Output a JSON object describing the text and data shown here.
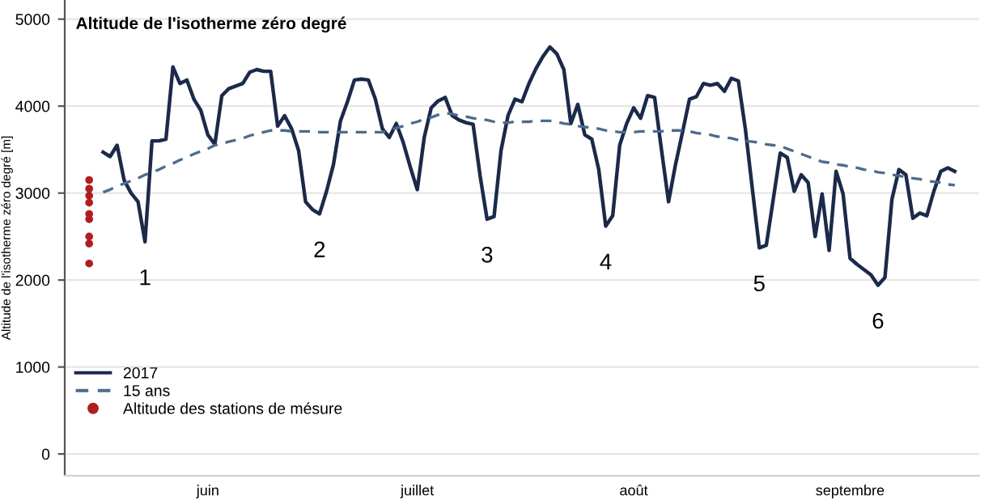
{
  "chart_data": {
    "type": "line",
    "title": "Altitude de l'isotherme zéro degré",
    "ylabel": "Altitude de l'isotherme zéro degré [m]",
    "ylim": [
      -250,
      5220
    ],
    "yticks": [
      0,
      1000,
      2000,
      3000,
      4000,
      5000
    ],
    "categories": [
      null,
      null,
      null,
      null,
      null,
      null,
      null,
      null,
      null,
      null,
      null,
      null,
      null,
      null,
      null,
      null,
      null,
      null,
      null,
      null,
      "juin",
      null,
      null,
      null,
      null,
      null,
      null,
      null,
      null,
      null,
      null,
      null,
      null,
      null,
      null,
      null,
      null,
      null,
      null,
      null,
      null,
      null,
      null,
      null,
      null,
      null,
      null,
      null,
      null,
      null,
      "juillet",
      null,
      null,
      null,
      null,
      null,
      null,
      null,
      null,
      null,
      null,
      null,
      null,
      null,
      null,
      null,
      null,
      null,
      null,
      null,
      null,
      null,
      null,
      null,
      null,
      null,
      null,
      null,
      null,
      null,
      null,
      "août",
      null,
      null,
      null,
      null,
      null,
      null,
      null,
      null,
      null,
      null,
      null,
      null,
      null,
      null,
      null,
      null,
      null,
      null,
      null,
      null,
      null,
      null,
      null,
      null,
      null,
      null,
      null,
      null,
      null,
      null,
      "septembre",
      null,
      null,
      null,
      null,
      null,
      null,
      null,
      null,
      null,
      null,
      null,
      null,
      null,
      null,
      null,
      null,
      null,
      null
    ],
    "grid": "y",
    "legend": "left",
    "annotations": [
      {
        "text": "1",
        "y": 2440
      },
      {
        "text": "2",
        "y": 2760
      },
      {
        "text": "3",
        "y": 2700
      },
      {
        "text": "4",
        "y": 2620
      },
      {
        "text": "5",
        "y": 2370
      },
      {
        "text": "6",
        "y": 1940
      }
    ],
    "series": [
      {
        "name": "2017",
        "line_style": "solid",
        "color": "#1b2a4a",
        "values": [
          null,
          null,
          null,
          null,
          null,
          3470,
          3420,
          3550,
          3150,
          3000,
          2900,
          2440,
          3600,
          3600,
          3620,
          4450,
          4260,
          4300,
          4080,
          3950,
          3670,
          3560,
          4120,
          4200,
          4230,
          4260,
          4390,
          4420,
          4400,
          4400,
          3770,
          3890,
          3740,
          3490,
          2900,
          2810,
          2760,
          3020,
          3330,
          3830,
          4050,
          4300,
          4310,
          4300,
          4080,
          3740,
          3640,
          3800,
          3580,
          3300,
          3040,
          3640,
          3980,
          4060,
          4100,
          3890,
          3840,
          3810,
          3790,
          3200,
          2700,
          2730,
          3490,
          3890,
          4080,
          4050,
          4260,
          4430,
          4570,
          4680,
          4600,
          4420,
          3800,
          4020,
          3670,
          3620,
          3270,
          2620,
          2740,
          3550,
          3800,
          3980,
          3860,
          4120,
          4100,
          3490,
          2900,
          3330,
          3700,
          4080,
          4110,
          4260,
          4240,
          4260,
          4170,
          4320,
          4290,
          3740,
          3050,
          2370,
          2400,
          2930,
          3460,
          3410,
          3020,
          3210,
          3120,
          2500,
          2990,
          2340,
          3250,
          2990,
          2250,
          2180,
          2120,
          2060,
          1940,
          2030,
          2930,
          3270,
          3210,
          2710,
          2770,
          2740,
          3020,
          3250,
          3290,
          3250,
          null,
          null,
          null
        ]
      },
      {
        "name": "15 ans",
        "line_style": "dashed",
        "color": "#4d6b8c",
        "values": [
          null,
          null,
          null,
          null,
          null,
          3010,
          3040,
          3080,
          3110,
          3140,
          3170,
          3210,
          3240,
          3270,
          3310,
          3340,
          3380,
          3410,
          3450,
          3480,
          3510,
          3550,
          3570,
          3590,
          3610,
          3630,
          3660,
          3680,
          3700,
          3720,
          3720,
          3720,
          3710,
          3710,
          3710,
          3710,
          3700,
          3700,
          3700,
          3700,
          3700,
          3700,
          3700,
          3700,
          3700,
          3700,
          3720,
          3750,
          3770,
          3800,
          3820,
          3850,
          3870,
          3900,
          3920,
          3910,
          3890,
          3880,
          3860,
          3850,
          3840,
          3820,
          3810,
          3810,
          3820,
          3820,
          3820,
          3830,
          3830,
          3830,
          3820,
          3800,
          3790,
          3770,
          3760,
          3750,
          3740,
          3720,
          3710,
          3700,
          3700,
          3700,
          3710,
          3710,
          3710,
          3710,
          3720,
          3720,
          3720,
          3710,
          3690,
          3680,
          3670,
          3650,
          3640,
          3630,
          3610,
          3600,
          3590,
          3580,
          3560,
          3550,
          3540,
          3510,
          3480,
          3450,
          3420,
          3390,
          3360,
          3350,
          3330,
          3320,
          3300,
          3290,
          3270,
          3260,
          3240,
          3230,
          3210,
          3200,
          3180,
          3170,
          3160,
          3140,
          3130,
          3120,
          3100,
          3090,
          null,
          null,
          null
        ]
      },
      {
        "name": "Altitude des stations de mésure",
        "type": "scatter",
        "marker": "circle",
        "color": "#b01e1e",
        "values": [
          null,
          null,
          null,
          3150,
          null,
          null,
          null,
          null,
          null,
          null,
          null,
          null,
          null,
          null,
          null,
          null,
          null,
          null,
          null,
          null,
          null,
          null,
          null,
          null,
          null,
          null,
          null,
          null,
          null,
          null,
          null,
          null,
          null,
          null,
          null,
          null,
          null,
          null,
          null,
          null,
          null,
          null,
          null,
          null,
          null,
          null,
          null,
          null,
          null,
          null,
          null,
          null,
          null,
          null,
          null,
          null,
          null,
          null,
          null,
          null,
          null,
          null,
          null,
          null,
          null,
          null,
          null,
          null,
          null,
          null,
          null,
          null,
          null,
          null,
          null,
          null,
          null,
          null,
          null,
          null,
          null,
          null,
          null,
          null,
          null,
          null,
          null,
          null,
          null,
          null,
          null,
          null,
          null,
          null,
          null,
          null,
          null,
          null,
          null,
          null,
          null,
          null,
          null,
          null,
          null,
          null,
          null,
          null,
          null,
          null,
          null,
          null,
          null,
          null,
          null,
          null,
          null,
          null,
          null,
          null,
          null,
          null,
          null,
          null,
          null,
          null,
          null,
          null,
          null,
          null,
          null
        ]
      },
      {
        "type": "scatter",
        "marker": "circle",
        "color": "#b01e1e",
        "values": [
          null,
          null,
          null,
          3050,
          null,
          null,
          null,
          null,
          null,
          null,
          null,
          null,
          null,
          null,
          null,
          null,
          null,
          null,
          null,
          null,
          null,
          null,
          null,
          null,
          null,
          null,
          null,
          null,
          null,
          null,
          null,
          null,
          null,
          null,
          null,
          null,
          null,
          null,
          null,
          null,
          null,
          null,
          null,
          null,
          null,
          null,
          null,
          null,
          null,
          null,
          null,
          null,
          null,
          null,
          null,
          null,
          null,
          null,
          null,
          null,
          null,
          null,
          null,
          null,
          null,
          null,
          null,
          null,
          null,
          null,
          null,
          null,
          null,
          null,
          null,
          null,
          null,
          null,
          null,
          null,
          null,
          null,
          null,
          null,
          null,
          null,
          null,
          null,
          null,
          null,
          null,
          null,
          null,
          null,
          null,
          null,
          null,
          null,
          null,
          null,
          null,
          null,
          null,
          null,
          null,
          null,
          null,
          null,
          null,
          null,
          null,
          null,
          null,
          null,
          null,
          null,
          null,
          null,
          null,
          null,
          null,
          null,
          null,
          null,
          null,
          null,
          null,
          null,
          null,
          null,
          null
        ]
      },
      {
        "type": "scatter",
        "marker": "circle",
        "color": "#b01e1e",
        "values": [
          null,
          null,
          null,
          2970,
          null,
          null,
          null,
          null,
          null,
          null,
          null,
          null,
          null,
          null,
          null,
          null,
          null,
          null,
          null,
          null,
          null,
          null,
          null,
          null,
          null,
          null,
          null,
          null,
          null,
          null,
          null,
          null,
          null,
          null,
          null,
          null,
          null,
          null,
          null,
          null,
          null,
          null,
          null,
          null,
          null,
          null,
          null,
          null,
          null,
          null,
          null,
          null,
          null,
          null,
          null,
          null,
          null,
          null,
          null,
          null,
          null,
          null,
          null,
          null,
          null,
          null,
          null,
          null,
          null,
          null,
          null,
          null,
          null,
          null,
          null,
          null,
          null,
          null,
          null,
          null,
          null,
          null,
          null,
          null,
          null,
          null,
          null,
          null,
          null,
          null,
          null,
          null,
          null,
          null,
          null,
          null,
          null,
          null,
          null,
          null,
          null,
          null,
          null,
          null,
          null,
          null,
          null,
          null,
          null,
          null,
          null,
          null,
          null,
          null,
          null,
          null,
          null,
          null,
          null,
          null,
          null,
          null,
          null,
          null,
          null,
          null,
          null,
          null,
          null,
          null,
          null
        ]
      },
      {
        "type": "scatter",
        "marker": "circle",
        "color": "#b01e1e",
        "values": [
          null,
          null,
          null,
          2890,
          null,
          null,
          null,
          null,
          null,
          null,
          null,
          null,
          null,
          null,
          null,
          null,
          null,
          null,
          null,
          null,
          null,
          null,
          null,
          null,
          null,
          null,
          null,
          null,
          null,
          null,
          null,
          null,
          null,
          null,
          null,
          null,
          null,
          null,
          null,
          null,
          null,
          null,
          null,
          null,
          null,
          null,
          null,
          null,
          null,
          null,
          null,
          null,
          null,
          null,
          null,
          null,
          null,
          null,
          null,
          null,
          null,
          null,
          null,
          null,
          null,
          null,
          null,
          null,
          null,
          null,
          null,
          null,
          null,
          null,
          null,
          null,
          null,
          null,
          null,
          null,
          null,
          null,
          null,
          null,
          null,
          null,
          null,
          null,
          null,
          null,
          null,
          null,
          null,
          null,
          null,
          null,
          null,
          null,
          null,
          null,
          null,
          null,
          null,
          null,
          null,
          null,
          null,
          null,
          null,
          null,
          null,
          null,
          null,
          null,
          null,
          null,
          null,
          null,
          null,
          null,
          null,
          null,
          null,
          null,
          null,
          null,
          null,
          null,
          null,
          null,
          null
        ]
      },
      {
        "type": "scatter",
        "marker": "circle",
        "color": "#b01e1e",
        "values": [
          null,
          null,
          null,
          2760,
          null,
          null,
          null,
          null,
          null,
          null,
          null,
          null,
          null,
          null,
          null,
          null,
          null,
          null,
          null,
          null,
          null,
          null,
          null,
          null,
          null,
          null,
          null,
          null,
          null,
          null,
          null,
          null,
          null,
          null,
          null,
          null,
          null,
          null,
          null,
          null,
          null,
          null,
          null,
          null,
          null,
          null,
          null,
          null,
          null,
          null,
          null,
          null,
          null,
          null,
          null,
          null,
          null,
          null,
          null,
          null,
          null,
          null,
          null,
          null,
          null,
          null,
          null,
          null,
          null,
          null,
          null,
          null,
          null,
          null,
          null,
          null,
          null,
          null,
          null,
          null,
          null,
          null,
          null,
          null,
          null,
          null,
          null,
          null,
          null,
          null,
          null,
          null,
          null,
          null,
          null,
          null,
          null,
          null,
          null,
          null,
          null,
          null,
          null,
          null,
          null,
          null,
          null,
          null,
          null,
          null,
          null,
          null,
          null,
          null,
          null,
          null,
          null,
          null,
          null,
          null,
          null,
          null,
          null,
          null,
          null,
          null,
          null,
          null,
          null,
          null,
          null
        ]
      },
      {
        "type": "scatter",
        "marker": "circle",
        "color": "#b01e1e",
        "values": [
          null,
          null,
          null,
          2700,
          null,
          null,
          null,
          null,
          null,
          null,
          null,
          null,
          null,
          null,
          null,
          null,
          null,
          null,
          null,
          null,
          null,
          null,
          null,
          null,
          null,
          null,
          null,
          null,
          null,
          null,
          null,
          null,
          null,
          null,
          null,
          null,
          null,
          null,
          null,
          null,
          null,
          null,
          null,
          null,
          null,
          null,
          null,
          null,
          null,
          null,
          null,
          null,
          null,
          null,
          null,
          null,
          null,
          null,
          null,
          null,
          null,
          null,
          null,
          null,
          null,
          null,
          null,
          null,
          null,
          null,
          null,
          null,
          null,
          null,
          null,
          null,
          null,
          null,
          null,
          null,
          null,
          null,
          null,
          null,
          null,
          null,
          null,
          null,
          null,
          null,
          null,
          null,
          null,
          null,
          null,
          null,
          null,
          null,
          null,
          null,
          null,
          null,
          null,
          null,
          null,
          null,
          null,
          null,
          null,
          null,
          null,
          null,
          null,
          null,
          null,
          null,
          null,
          null,
          null,
          null,
          null,
          null,
          null,
          null,
          null,
          null,
          null,
          null,
          null,
          null,
          null
        ]
      },
      {
        "type": "scatter",
        "marker": "circle",
        "color": "#b01e1e",
        "values": [
          null,
          null,
          null,
          2500,
          null,
          null,
          null,
          null,
          null,
          null,
          null,
          null,
          null,
          null,
          null,
          null,
          null,
          null,
          null,
          null,
          null,
          null,
          null,
          null,
          null,
          null,
          null,
          null,
          null,
          null,
          null,
          null,
          null,
          null,
          null,
          null,
          null,
          null,
          null,
          null,
          null,
          null,
          null,
          null,
          null,
          null,
          null,
          null,
          null,
          null,
          null,
          null,
          null,
          null,
          null,
          null,
          null,
          null,
          null,
          null,
          null,
          null,
          null,
          null,
          null,
          null,
          null,
          null,
          null,
          null,
          null,
          null,
          null,
          null,
          null,
          null,
          null,
          null,
          null,
          null,
          null,
          null,
          null,
          null,
          null,
          null,
          null,
          null,
          null,
          null,
          null,
          null,
          null,
          null,
          null,
          null,
          null,
          null,
          null,
          null,
          null,
          null,
          null,
          null,
          null,
          null,
          null,
          null,
          null,
          null,
          null,
          null,
          null,
          null,
          null,
          null,
          null,
          null,
          null,
          null,
          null,
          null,
          null,
          null,
          null,
          null,
          null,
          null,
          null,
          null,
          null
        ]
      },
      {
        "type": "scatter",
        "marker": "circle",
        "color": "#b01e1e",
        "values": [
          null,
          null,
          null,
          2420,
          null,
          null,
          null,
          null,
          null,
          null,
          null,
          null,
          null,
          null,
          null,
          null,
          null,
          null,
          null,
          null,
          null,
          null,
          null,
          null,
          null,
          null,
          null,
          null,
          null,
          null,
          null,
          null,
          null,
          null,
          null,
          null,
          null,
          null,
          null,
          null,
          null,
          null,
          null,
          null,
          null,
          null,
          null,
          null,
          null,
          null,
          null,
          null,
          null,
          null,
          null,
          null,
          null,
          null,
          null,
          null,
          null,
          null,
          null,
          null,
          null,
          null,
          null,
          null,
          null,
          null,
          null,
          null,
          null,
          null,
          null,
          null,
          null,
          null,
          null,
          null,
          null,
          null,
          null,
          null,
          null,
          null,
          null,
          null,
          null,
          null,
          null,
          null,
          null,
          null,
          null,
          null,
          null,
          null,
          null,
          null,
          null,
          null,
          null,
          null,
          null,
          null,
          null,
          null,
          null,
          null,
          null,
          null,
          null,
          null,
          null,
          null,
          null,
          null,
          null,
          null,
          null,
          null,
          null,
          null,
          null,
          null,
          null,
          null,
          null,
          null,
          null
        ]
      },
      {
        "type": "scatter",
        "marker": "circle",
        "color": "#b01e1e",
        "values": [
          null,
          null,
          null,
          2190,
          null,
          null,
          null,
          null,
          null,
          null,
          null,
          null,
          null,
          null,
          null,
          null,
          null,
          null,
          null,
          null,
          null,
          null,
          null,
          null,
          null,
          null,
          null,
          null,
          null,
          null,
          null,
          null,
          null,
          null,
          null,
          null,
          null,
          null,
          null,
          null,
          null,
          null,
          null,
          null,
          null,
          null,
          null,
          null,
          null,
          null,
          null,
          null,
          null,
          null,
          null,
          null,
          null,
          null,
          null,
          null,
          null,
          null,
          null,
          null,
          null,
          null,
          null,
          null,
          null,
          null,
          null,
          null,
          null,
          null,
          null,
          null,
          null,
          null,
          null,
          null,
          null,
          null,
          null,
          null,
          null,
          null,
          null,
          null,
          null,
          null,
          null,
          null,
          null,
          null,
          null,
          null,
          null,
          null,
          null,
          null,
          null,
          null,
          null,
          null,
          null,
          null,
          null,
          null,
          null,
          null,
          null,
          null,
          null,
          null,
          null,
          null,
          null,
          null,
          null,
          null,
          null,
          null,
          null,
          null,
          null,
          null,
          null,
          null,
          null,
          null,
          null
        ]
      }
    ]
  }
}
